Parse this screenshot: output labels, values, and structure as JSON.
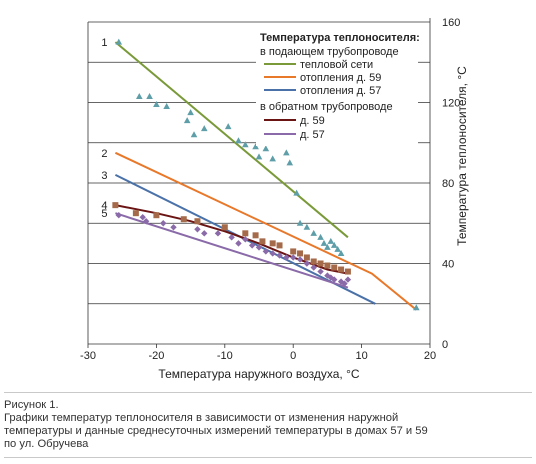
{
  "chart_data": {
    "type": "line",
    "xlabel": "Температура наружного воздуха, °С",
    "ylabel": "Температура теплоносителя, °С",
    "xlim": [
      -30,
      20
    ],
    "ylim": [
      0,
      160
    ],
    "xticks": [
      -30,
      -20,
      -10,
      0,
      10,
      20
    ],
    "yticks": [
      0,
      40,
      80,
      120,
      160
    ],
    "grid": "horizontal",
    "legend_placement": "top-right",
    "legend": {
      "title": "Температура теплоносителя:",
      "group1": "в подающем трубопроводе",
      "group2": "в обратном трубопроводе"
    },
    "series": [
      {
        "name": "тепловой сети",
        "label": "1",
        "color": "#7a9a3a",
        "x": [
          -26,
          8
        ],
        "y": [
          150,
          53
        ]
      },
      {
        "name": "отопления д. 59",
        "label": "2",
        "color": "#e8782a",
        "x": [
          -26,
          11.5,
          18
        ],
        "y": [
          95,
          35,
          17
        ]
      },
      {
        "name": "отопления д. 57",
        "label": "3",
        "color": "#4a72a8",
        "x": [
          -26,
          12
        ],
        "y": [
          84,
          20
        ]
      },
      {
        "name": "д. 59",
        "label": "4",
        "color": "#6b1414",
        "x": [
          -26,
          -20,
          -15,
          -10,
          -5,
          0,
          5,
          8
        ],
        "y": [
          69,
          65,
          61,
          56,
          50,
          43,
          37,
          35
        ]
      },
      {
        "name": "д. 57",
        "label": "5",
        "color": "#8a6aa8",
        "x": [
          -26,
          8
        ],
        "y": [
          65,
          28
        ]
      }
    ],
    "scatter": [
      {
        "name": "тепловой сети",
        "marker": "triangle",
        "color": "#5e9ea8",
        "points": [
          [
            -25.5,
            150
          ],
          [
            -22.5,
            123
          ],
          [
            -20,
            119
          ],
          [
            -21,
            123
          ],
          [
            -18.5,
            118
          ],
          [
            -15,
            115
          ],
          [
            -15.5,
            111
          ],
          [
            -14.5,
            104
          ],
          [
            -13,
            107
          ],
          [
            -9.5,
            108
          ],
          [
            -8,
            101
          ],
          [
            -7,
            99
          ],
          [
            -5.5,
            98
          ],
          [
            -5,
            93
          ],
          [
            -4,
            97
          ],
          [
            -3,
            92
          ],
          [
            -1,
            95
          ],
          [
            -0.5,
            90
          ],
          [
            0.5,
            75
          ],
          [
            1,
            60
          ],
          [
            2,
            58
          ],
          [
            3,
            55
          ],
          [
            4,
            53
          ],
          [
            4.5,
            50
          ],
          [
            5,
            48
          ],
          [
            5.5,
            51
          ],
          [
            6,
            49
          ],
          [
            6.5,
            47
          ],
          [
            7,
            45
          ],
          [
            18,
            18
          ]
        ]
      },
      {
        "name": "д. 59",
        "marker": "square",
        "color": "#a56a4a",
        "points": [
          [
            -26,
            69
          ],
          [
            -23,
            65
          ],
          [
            -20,
            64
          ],
          [
            -16,
            62
          ],
          [
            -14,
            61
          ],
          [
            -10,
            58
          ],
          [
            -7,
            55
          ],
          [
            -5.5,
            54
          ],
          [
            -4.5,
            51
          ],
          [
            -3,
            50
          ],
          [
            -2,
            49
          ],
          [
            0,
            46
          ],
          [
            1,
            45
          ],
          [
            2,
            43
          ],
          [
            3,
            41
          ],
          [
            4,
            40
          ],
          [
            5,
            39
          ],
          [
            6,
            38
          ],
          [
            7,
            37
          ],
          [
            8,
            36
          ]
        ]
      },
      {
        "name": "д. 57",
        "marker": "diamond",
        "color": "#8a6aa8",
        "points": [
          [
            -25.5,
            64
          ],
          [
            -22,
            63
          ],
          [
            -21.5,
            61
          ],
          [
            -19,
            60
          ],
          [
            -17.5,
            58
          ],
          [
            -14,
            57
          ],
          [
            -13,
            55
          ],
          [
            -11,
            55
          ],
          [
            -9,
            53
          ],
          [
            -8,
            50
          ],
          [
            -7,
            52
          ],
          [
            -6,
            49
          ],
          [
            -5,
            48
          ],
          [
            -4,
            46
          ],
          [
            -3,
            45
          ],
          [
            -2,
            44
          ],
          [
            -1,
            43
          ],
          [
            0,
            43
          ],
          [
            1,
            42
          ],
          [
            2,
            40
          ],
          [
            3,
            38
          ],
          [
            4,
            36
          ],
          [
            5,
            34
          ],
          [
            5.5,
            33
          ],
          [
            6,
            32
          ],
          [
            7,
            31
          ],
          [
            7.5,
            30
          ],
          [
            8,
            32
          ]
        ]
      }
    ]
  },
  "caption": {
    "line1": "Рисунок 1.",
    "line2": "Графики температур теплоносителя в зависимости от изменения наружной",
    "line3": "температуры и данные среднесуточных измерений температуры в домах 57 и 59",
    "line4": "по ул. Обручева"
  }
}
